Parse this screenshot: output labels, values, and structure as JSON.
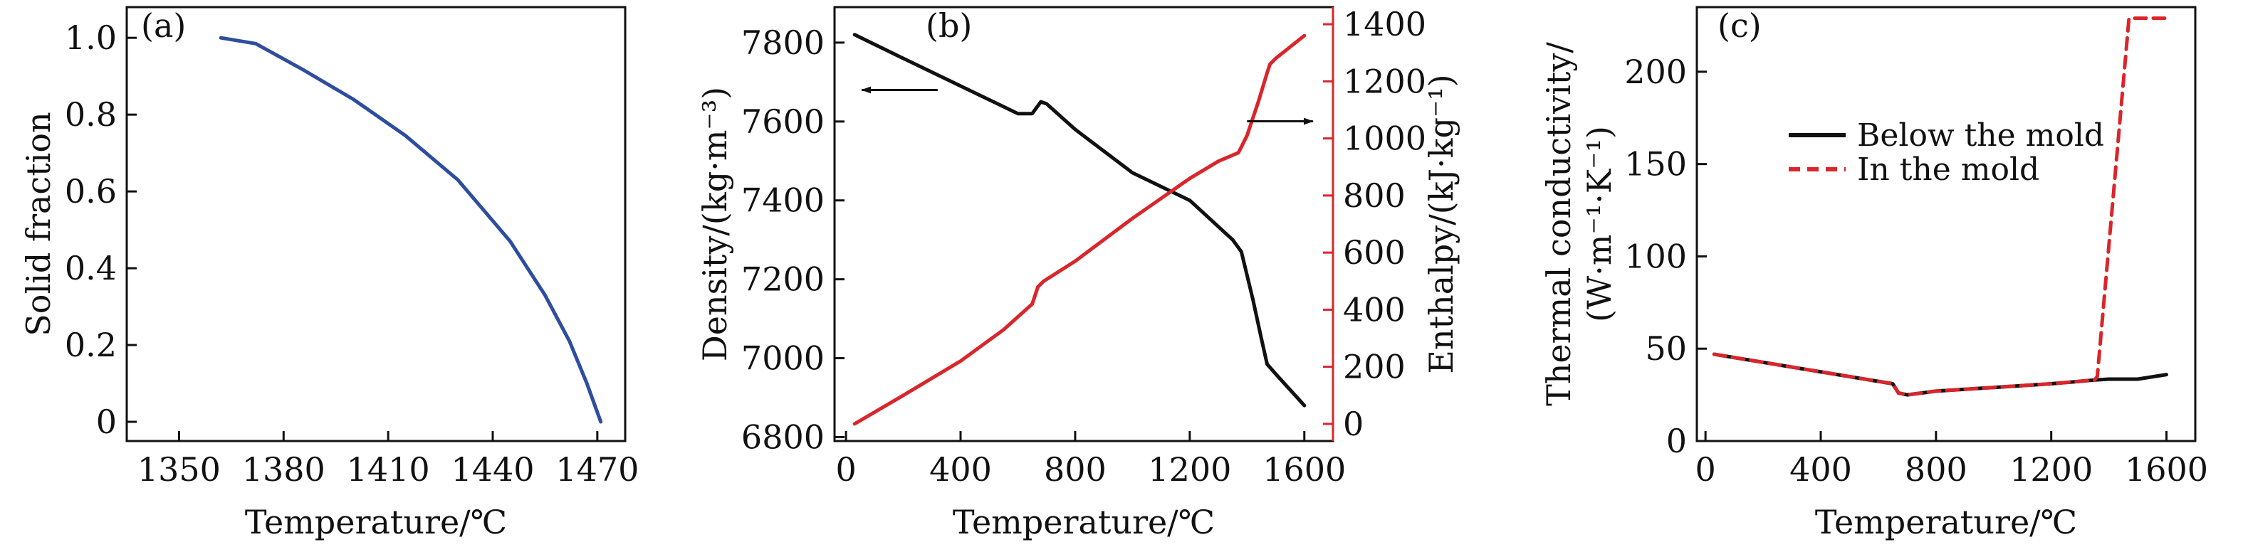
{
  "colors": {
    "blue": "#2e4d9e",
    "black": "#111111",
    "red": "#d9262b"
  },
  "chart_data": [
    {
      "type": "line",
      "panel_label": "(a)",
      "xlabel": "Temperature/℃",
      "ylabel": "Solid fraction",
      "xlim": [
        1335,
        1478
      ],
      "ylim": [
        -0.05,
        1.08
      ],
      "xticks": [
        1350,
        1380,
        1410,
        1440,
        1470
      ],
      "xtick_labels": [
        "1350",
        "1380",
        "1410",
        "1440",
        "1470"
      ],
      "yticks": [
        0,
        0.2,
        0.4,
        0.6,
        0.8,
        1.0
      ],
      "ytick_labels": [
        "0",
        "0.2",
        "0.4",
        "0.6",
        "0.8",
        "1.0"
      ],
      "series": [
        {
          "color": "#2e4d9e",
          "x": [
            1362,
            1372,
            1385,
            1400,
            1415,
            1430,
            1445,
            1455,
            1462,
            1467,
            1471
          ],
          "y": [
            1.0,
            0.985,
            0.92,
            0.84,
            0.745,
            0.63,
            0.47,
            0.33,
            0.21,
            0.1,
            0.0
          ]
        }
      ]
    },
    {
      "type": "line",
      "panel_label": "(b)",
      "xlabel": "Temperature/℃",
      "ylabel": "Density/(kg·m⁻³)",
      "ylabel_right": "Enthalpy/(kJ·kg⁻¹)",
      "xlim": [
        -40,
        1700
      ],
      "ylim": [
        6790,
        7890
      ],
      "ylim_right": [
        -60,
        1460
      ],
      "xticks": [
        0,
        400,
        800,
        1200,
        1600
      ],
      "xtick_labels": [
        "0",
        "400",
        "800",
        "1200",
        "1600"
      ],
      "yticks": [
        6800,
        7000,
        7200,
        7400,
        7600,
        7800
      ],
      "ytick_labels": [
        "6800",
        "7000",
        "7200",
        "7400",
        "7600",
        "7800"
      ],
      "yticks_right": [
        0,
        200,
        400,
        600,
        800,
        1000,
        1200,
        1400
      ],
      "ytick_labels_right": [
        "0",
        "200",
        "400",
        "600",
        "800",
        "1000",
        "1200",
        "1400"
      ],
      "series": [
        {
          "axis": "left",
          "color": "#111111",
          "x": [
            30,
            200,
            400,
            600,
            650,
            680,
            700,
            800,
            1000,
            1200,
            1350,
            1380,
            1420,
            1450,
            1470,
            1500,
            1600
          ],
          "y": [
            7820,
            7760,
            7690,
            7620,
            7620,
            7650,
            7645,
            7580,
            7470,
            7400,
            7300,
            7270,
            7150,
            7050,
            6985,
            6960,
            6880
          ]
        },
        {
          "axis": "right",
          "color": "#d9262b",
          "x": [
            30,
            200,
            400,
            550,
            650,
            670,
            690,
            800,
            1000,
            1200,
            1300,
            1370,
            1400,
            1440,
            1470,
            1480,
            1500,
            1600
          ],
          "y": [
            0,
            100,
            220,
            330,
            420,
            480,
            500,
            570,
            720,
            860,
            920,
            950,
            1010,
            1130,
            1230,
            1260,
            1280,
            1360
          ]
        }
      ],
      "arrows": [
        {
          "points": "left",
          "x_from": 320,
          "x_to": 55,
          "y": 7680
        },
        {
          "points": "right",
          "x_from": 1400,
          "x_to": 1630,
          "y": 1060
        }
      ]
    },
    {
      "type": "line",
      "panel_label": "(c)",
      "xlabel": "Temperature/℃",
      "ylabel_line1": "Thermal conductivity/",
      "ylabel_line2": "(W·m⁻¹·K⁻¹)",
      "xlim": [
        -30,
        1700
      ],
      "ylim": [
        0,
        235
      ],
      "xticks": [
        0,
        400,
        800,
        1200,
        1600
      ],
      "xtick_labels": [
        "0",
        "400",
        "800",
        "1200",
        "1600"
      ],
      "yticks": [
        0,
        50,
        100,
        150,
        200
      ],
      "ytick_labels": [
        "0",
        "50",
        "100",
        "150",
        "200"
      ],
      "legend_position": "upper-middle",
      "series": [
        {
          "name": "Below the mold",
          "color": "#111111",
          "dash": "solid",
          "x": [
            30,
            650,
            670,
            700,
            800,
            1000,
            1200,
            1350,
            1400,
            1500,
            1600
          ],
          "y": [
            47,
            31,
            26,
            25,
            27,
            29,
            31,
            33,
            33.5,
            33.5,
            36
          ]
        },
        {
          "name": "In the mold",
          "color": "#d9262b",
          "dash": "dashed",
          "x": [
            30,
            650,
            670,
            700,
            800,
            1000,
            1200,
            1350,
            1360,
            1470,
            1500,
            1600
          ],
          "y": [
            47,
            31,
            26,
            25,
            27,
            29,
            31,
            33,
            35,
            229,
            229,
            229
          ]
        }
      ]
    }
  ]
}
